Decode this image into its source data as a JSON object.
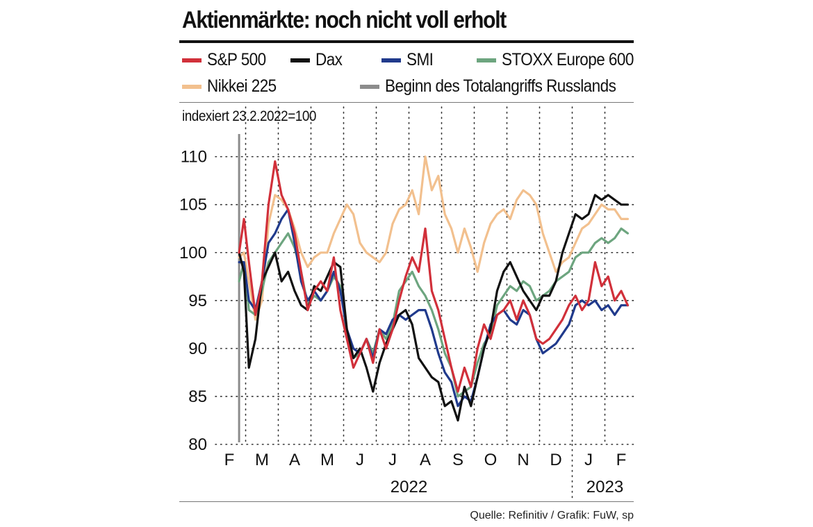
{
  "chart_data": {
    "type": "line",
    "title": "Aktienmärkte: noch nicht voll erholt",
    "subtitle": "indexiert 23.2.2022=100",
    "source": "Quelle: Refinitiv / Grafik: FuW, sp",
    "ylim": [
      80,
      112
    ],
    "yticks": [
      80,
      85,
      90,
      95,
      100,
      105,
      110
    ],
    "xlim": [
      0,
      12.7
    ],
    "month_ticks": [
      {
        "label": "F",
        "pos": 0
      },
      {
        "label": "M",
        "pos": 1
      },
      {
        "label": "A",
        "pos": 2
      },
      {
        "label": "M",
        "pos": 3
      },
      {
        "label": "J",
        "pos": 4
      },
      {
        "label": "J",
        "pos": 5
      },
      {
        "label": "A",
        "pos": 6
      },
      {
        "label": "S",
        "pos": 7
      },
      {
        "label": "O",
        "pos": 8
      },
      {
        "label": "N",
        "pos": 9
      },
      {
        "label": "D",
        "pos": 10
      },
      {
        "label": "J",
        "pos": 11
      },
      {
        "label": "F",
        "pos": 12
      }
    ],
    "years": [
      {
        "label": "2022",
        "pos": 5.5
      },
      {
        "label": "2023",
        "pos": 11.5
      }
    ],
    "year_divider": 10.5,
    "event_line": {
      "label": "Beginn des Totalangriffs Russlands",
      "pos": 0.3,
      "color": "#8c8c8c"
    },
    "grid": "dotted",
    "legend": "top",
    "series": [
      {
        "name": "S&P 500",
        "color": "#d1303a",
        "x": [
          0.3,
          0.45,
          0.6,
          0.8,
          1.0,
          1.2,
          1.4,
          1.6,
          1.8,
          2.0,
          2.2,
          2.4,
          2.6,
          2.8,
          3.0,
          3.2,
          3.4,
          3.6,
          3.8,
          4.0,
          4.2,
          4.4,
          4.6,
          4.8,
          5.0,
          5.2,
          5.4,
          5.6,
          5.8,
          6.0,
          6.2,
          6.4,
          6.6,
          6.8,
          7.0,
          7.2,
          7.4,
          7.6,
          7.8,
          8.0,
          8.2,
          8.4,
          8.6,
          8.8,
          9.0,
          9.2,
          9.4,
          9.6,
          9.8,
          10.0,
          10.2,
          10.4,
          10.6,
          10.8,
          11.0,
          11.2,
          11.4,
          11.6,
          11.8,
          12.0,
          12.2
        ],
        "values": [
          100,
          103.5,
          99,
          93.5,
          97,
          105,
          109.5,
          106,
          104.5,
          102,
          98,
          94,
          96,
          97,
          96,
          99.5,
          94,
          91,
          88,
          89.5,
          91,
          88.5,
          92,
          90,
          92,
          95,
          97.5,
          99.5,
          98,
          102.5,
          96,
          94,
          91,
          88,
          85.5,
          88,
          86,
          90,
          92.5,
          91,
          93.5,
          94,
          95,
          93,
          95,
          93.5,
          91,
          90.5,
          91,
          92,
          93,
          94.5,
          95.5,
          94,
          95,
          99,
          96.5,
          97.5,
          95,
          96,
          94.5
        ]
      },
      {
        "name": "Dax",
        "color": "#111111",
        "x": [
          0.3,
          0.45,
          0.6,
          0.8,
          1.0,
          1.2,
          1.4,
          1.6,
          1.8,
          2.0,
          2.2,
          2.4,
          2.6,
          2.8,
          3.0,
          3.2,
          3.4,
          3.6,
          3.8,
          4.0,
          4.2,
          4.4,
          4.6,
          4.8,
          5.0,
          5.2,
          5.4,
          5.6,
          5.8,
          6.0,
          6.2,
          6.4,
          6.6,
          6.8,
          7.0,
          7.2,
          7.4,
          7.6,
          7.8,
          8.0,
          8.2,
          8.4,
          8.6,
          8.8,
          9.0,
          9.2,
          9.4,
          9.6,
          9.8,
          10.0,
          10.2,
          10.4,
          10.6,
          10.8,
          11.0,
          11.2,
          11.4,
          11.6,
          11.8,
          12.0,
          12.2
        ],
        "values": [
          100,
          98,
          88,
          91,
          97,
          98.5,
          100,
          97,
          98,
          96,
          94.5,
          94,
          96.5,
          96,
          97.5,
          99,
          98.5,
          92,
          89,
          90,
          88,
          85.5,
          88.5,
          90.5,
          92,
          93.5,
          94,
          92.5,
          89,
          88,
          87,
          86.5,
          84,
          84.5,
          82.5,
          86,
          84,
          87,
          90,
          92,
          96,
          98,
          99,
          97.5,
          96,
          95,
          94,
          95.5,
          95.5,
          97,
          100,
          102,
          104,
          103.5,
          104,
          106,
          105.5,
          106,
          105.5,
          105,
          105
        ]
      },
      {
        "name": "SMI",
        "color": "#203a8c",
        "x": [
          0.3,
          0.45,
          0.6,
          0.8,
          1.0,
          1.2,
          1.4,
          1.6,
          1.8,
          2.0,
          2.2,
          2.4,
          2.6,
          2.8,
          3.0,
          3.2,
          3.4,
          3.6,
          3.8,
          4.0,
          4.2,
          4.4,
          4.6,
          4.8,
          5.0,
          5.2,
          5.4,
          5.6,
          5.8,
          6.0,
          6.2,
          6.4,
          6.6,
          6.8,
          7.0,
          7.2,
          7.4,
          7.6,
          7.8,
          8.0,
          8.2,
          8.4,
          8.6,
          8.8,
          9.0,
          9.2,
          9.4,
          9.6,
          9.8,
          10.0,
          10.2,
          10.4,
          10.6,
          10.8,
          11.0,
          11.2,
          11.4,
          11.6,
          11.8,
          12.0,
          12.2
        ],
        "values": [
          99,
          99,
          95,
          94,
          97,
          101,
          102,
          103.5,
          104.5,
          101,
          97,
          95,
          96,
          95,
          96,
          98,
          96,
          92,
          90,
          89.5,
          91,
          89,
          92,
          91.5,
          93,
          93.5,
          93,
          93.5,
          94,
          94,
          92,
          89.5,
          87.5,
          86.5,
          84,
          85,
          84.5,
          87,
          90,
          92.5,
          93.5,
          94,
          93,
          92.5,
          94,
          93.5,
          91,
          89.5,
          90,
          90.5,
          91.5,
          92.5,
          94.5,
          95,
          94.5,
          95,
          94,
          94.5,
          93.5,
          94.5,
          94.5
        ]
      },
      {
        "name": "STOXX Europe 600",
        "color": "#6da57f",
        "x": [
          0.3,
          0.45,
          0.6,
          0.8,
          1.0,
          1.2,
          1.4,
          1.6,
          1.8,
          2.0,
          2.2,
          2.4,
          2.6,
          2.8,
          3.0,
          3.2,
          3.4,
          3.6,
          3.8,
          4.0,
          4.2,
          4.4,
          4.6,
          4.8,
          5.0,
          5.2,
          5.4,
          5.6,
          5.8,
          6.0,
          6.2,
          6.4,
          6.6,
          6.8,
          7.0,
          7.2,
          7.4,
          7.6,
          7.8,
          8.0,
          8.2,
          8.4,
          8.6,
          8.8,
          9.0,
          9.2,
          9.4,
          9.6,
          9.8,
          10.0,
          10.2,
          10.4,
          10.6,
          10.8,
          11.0,
          11.2,
          11.4,
          11.6,
          11.8,
          12.0,
          12.2
        ],
        "values": [
          97,
          99,
          94,
          93.5,
          96,
          99,
          100,
          101,
          102,
          100.5,
          98,
          94.5,
          95.5,
          95,
          96,
          97.5,
          96.5,
          91.5,
          89,
          89.5,
          91,
          89.5,
          92,
          91,
          92.5,
          96,
          97,
          98,
          96.5,
          95.5,
          94,
          92,
          89.5,
          88,
          85,
          85.5,
          86,
          88.5,
          90.5,
          91.5,
          94.5,
          95.5,
          96.5,
          96,
          97,
          96.5,
          95,
          95.5,
          96,
          97,
          97.5,
          98,
          99.5,
          100,
          100,
          101,
          101.5,
          101,
          101.5,
          102.5,
          102
        ]
      },
      {
        "name": "Nikkei 225",
        "color": "#f2c08e",
        "x": [
          0.3,
          0.45,
          0.6,
          0.8,
          1.0,
          1.2,
          1.4,
          1.6,
          1.8,
          2.0,
          2.2,
          2.4,
          2.6,
          2.8,
          3.0,
          3.2,
          3.4,
          3.6,
          3.8,
          4.0,
          4.2,
          4.4,
          4.6,
          4.8,
          5.0,
          5.2,
          5.4,
          5.6,
          5.8,
          6.0,
          6.2,
          6.4,
          6.6,
          6.8,
          7.0,
          7.2,
          7.4,
          7.6,
          7.8,
          8.0,
          8.2,
          8.4,
          8.6,
          8.8,
          9.0,
          9.2,
          9.4,
          9.6,
          9.8,
          10.0,
          10.2,
          10.4,
          10.6,
          10.8,
          11.0,
          11.2,
          11.4,
          11.6,
          11.8,
          12.0,
          12.2
        ],
        "values": [
          99.5,
          100,
          97,
          93,
          95,
          103,
          106,
          105.5,
          104.5,
          102.5,
          100,
          98.5,
          99.5,
          100,
          100,
          102,
          103.5,
          105,
          104,
          101,
          100,
          99.5,
          99,
          100,
          103,
          104.5,
          105,
          106.5,
          104,
          110,
          106.5,
          108,
          104,
          102.5,
          100,
          102.5,
          100.5,
          98,
          101,
          103,
          104,
          104.5,
          103.5,
          105.5,
          106.5,
          106,
          105,
          102,
          100,
          98,
          99,
          99.5,
          101,
          102.5,
          103,
          104,
          105,
          104.5,
          104.5,
          103.5,
          103.5
        ]
      }
    ]
  }
}
